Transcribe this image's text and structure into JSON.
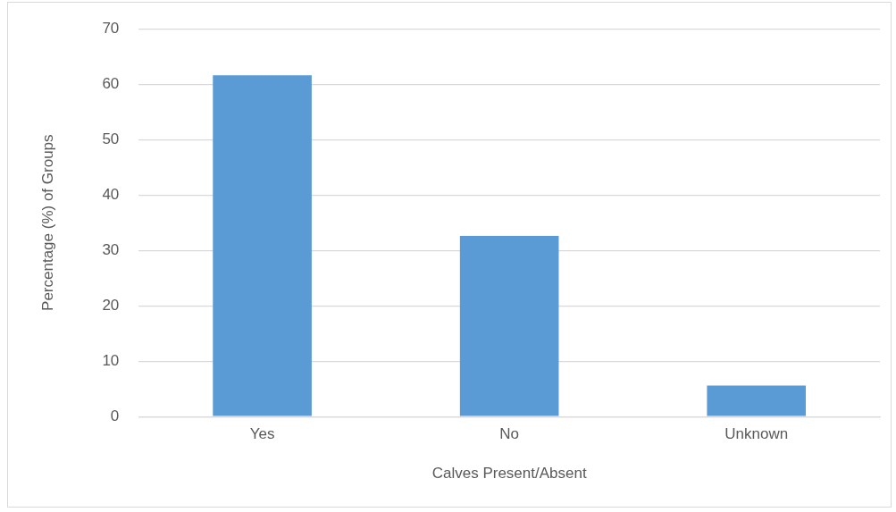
{
  "chart_data": {
    "type": "bar",
    "xlabel": "Calves Present/Absent",
    "ylabel": "Percentage (%) of Groups",
    "categories": [
      "Yes",
      "No",
      "Unknown"
    ],
    "values": [
      61.6,
      32.6,
      5.6
    ],
    "color": "#5b9bd5",
    "ylim": [
      0,
      70
    ],
    "yticks": [
      0,
      10,
      20,
      30,
      40,
      50,
      60,
      70
    ],
    "grid": "y",
    "legend": false
  }
}
